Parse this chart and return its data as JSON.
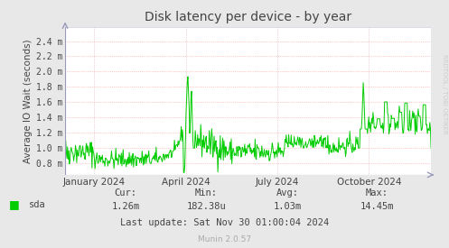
{
  "title": "Disk latency per device - by year",
  "ylabel": "Average IO Wait (seconds)",
  "bg_color": "#e8e8e8",
  "plot_bg_color": "#ffffff",
  "line_color": "#00cc00",
  "text_color": "#444444",
  "legend_label": "sda",
  "legend_color": "#00cc00",
  "cur_val": "1.26m",
  "min_val": "182.38u",
  "avg_val": "1.03m",
  "max_val": "14.45m",
  "last_update": "Last update: Sat Nov 30 01:00:04 2024",
  "munin_version": "Munin 2.0.57",
  "rrdtool_text": "RRDTOOL / TOBI OETIKER",
  "ytick_labels": [
    "0.8 m",
    "1.0 m",
    "1.2 m",
    "1.4 m",
    "1.6 m",
    "1.8 m",
    "2.0 m",
    "2.2 m",
    "2.4 m"
  ],
  "ytick_values": [
    0.0008,
    0.001,
    0.0012,
    0.0014,
    0.0016,
    0.0018,
    0.002,
    0.0022,
    0.0024
  ],
  "ymin": 0.00065,
  "ymax": 0.00258,
  "x_tick_labels": [
    "January 2024",
    "April 2024",
    "July 2024",
    "October 2024"
  ],
  "x_tick_positions": [
    0.08,
    0.33,
    0.58,
    0.83
  ]
}
